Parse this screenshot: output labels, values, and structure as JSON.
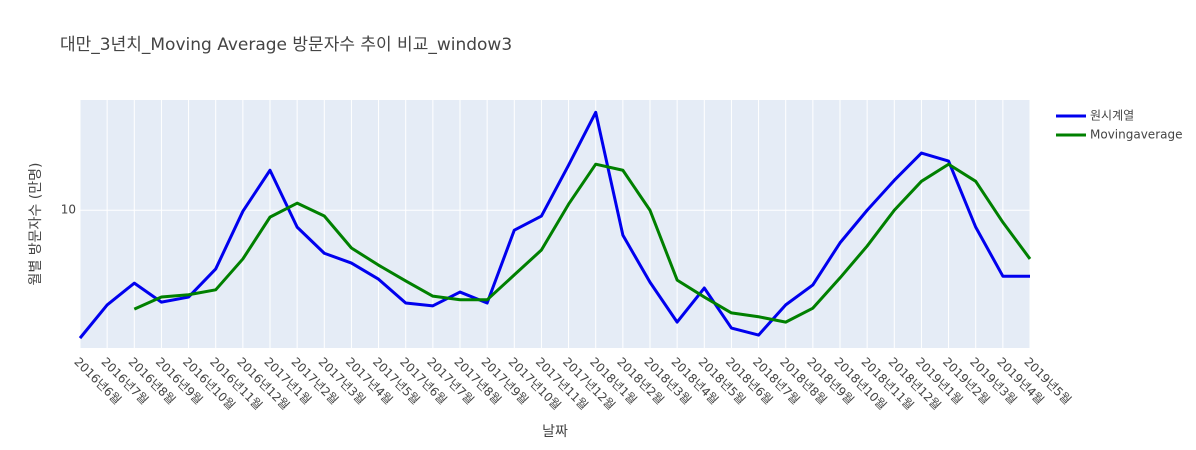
{
  "chart_data": {
    "type": "line",
    "title": "대만_3년치_Moving Average 방문자수 추이 비교_window3",
    "x_label": "날짜",
    "y_label": "월별 방문자수 (만명)",
    "categories": [
      "2016년6월",
      "2016년7월",
      "2016년8월",
      "2016년9월",
      "2016년10월",
      "2016년11월",
      "2016년12월",
      "2017년1월",
      "2017년2월",
      "2017년3월",
      "2017년4월",
      "2017년5월",
      "2017년6월",
      "2017년7월",
      "2017년8월",
      "2017년9월",
      "2017년10월",
      "2017년11월",
      "2017년12월",
      "2018년1월",
      "2018년2월",
      "2018년3월",
      "2018년4월",
      "2018년5월",
      "2018년6월",
      "2018년7월",
      "2018년8월",
      "2018년9월",
      "2018년10월",
      "2018년11월",
      "2018년12월",
      "2019년1월",
      "2019년2월",
      "2019년3월",
      "2019년4월",
      "2019년5월"
    ],
    "series": [
      {
        "name": "원시계열",
        "color": "#0000ee",
        "values": [
          7.0,
          7.68,
          8.16,
          7.74,
          7.85,
          8.49,
          9.97,
          11.18,
          9.54,
          8.87,
          8.63,
          8.25,
          7.72,
          7.66,
          7.96,
          7.72,
          9.46,
          9.84,
          11.34,
          13.14,
          9.33,
          8.18,
          7.32,
          8.05,
          7.2,
          7.06,
          7.68,
          8.12,
          9.13,
          10.0,
          10.87,
          11.73,
          11.47,
          9.54,
          8.32,
          8.32
        ]
      },
      {
        "name": "Movingaverage",
        "color": "#008000",
        "values": [
          null,
          null,
          7.59,
          7.85,
          7.9,
          8.01,
          8.73,
          9.81,
          10.2,
          9.84,
          9.0,
          8.58,
          8.21,
          7.87,
          7.79,
          7.79,
          8.35,
          8.95,
          10.17,
          11.37,
          11.18,
          10.0,
          8.23,
          7.85,
          7.51,
          7.43,
          7.32,
          7.61,
          8.28,
          9.05,
          10.0,
          10.84,
          11.37,
          10.84,
          9.67,
          8.73
        ]
      }
    ],
    "ylim": [
      6.81,
      13.6
    ],
    "yticks": [
      10
    ],
    "log_y": true,
    "grid": true,
    "legend": "top-right"
  }
}
